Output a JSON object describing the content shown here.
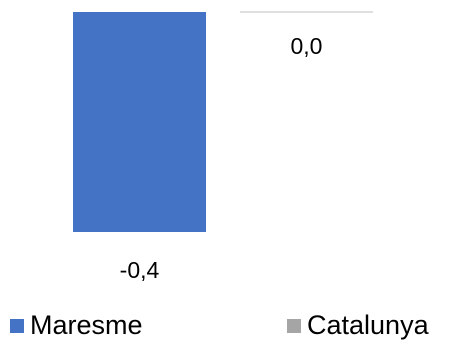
{
  "chart_data": {
    "type": "bar",
    "categories": [
      ""
    ],
    "series": [
      {
        "name": "Maresme",
        "values": [
          -0.4
        ],
        "label": "-0,4",
        "color": "#4472C4"
      },
      {
        "name": "Catalunya",
        "values": [
          0.0
        ],
        "label": "0,0",
        "color": "#A5A5A5"
      }
    ],
    "title": "",
    "xlabel": "",
    "ylabel": "",
    "ylim": [
      -0.4,
      0.0
    ],
    "grid": false,
    "legend": "bottom"
  }
}
